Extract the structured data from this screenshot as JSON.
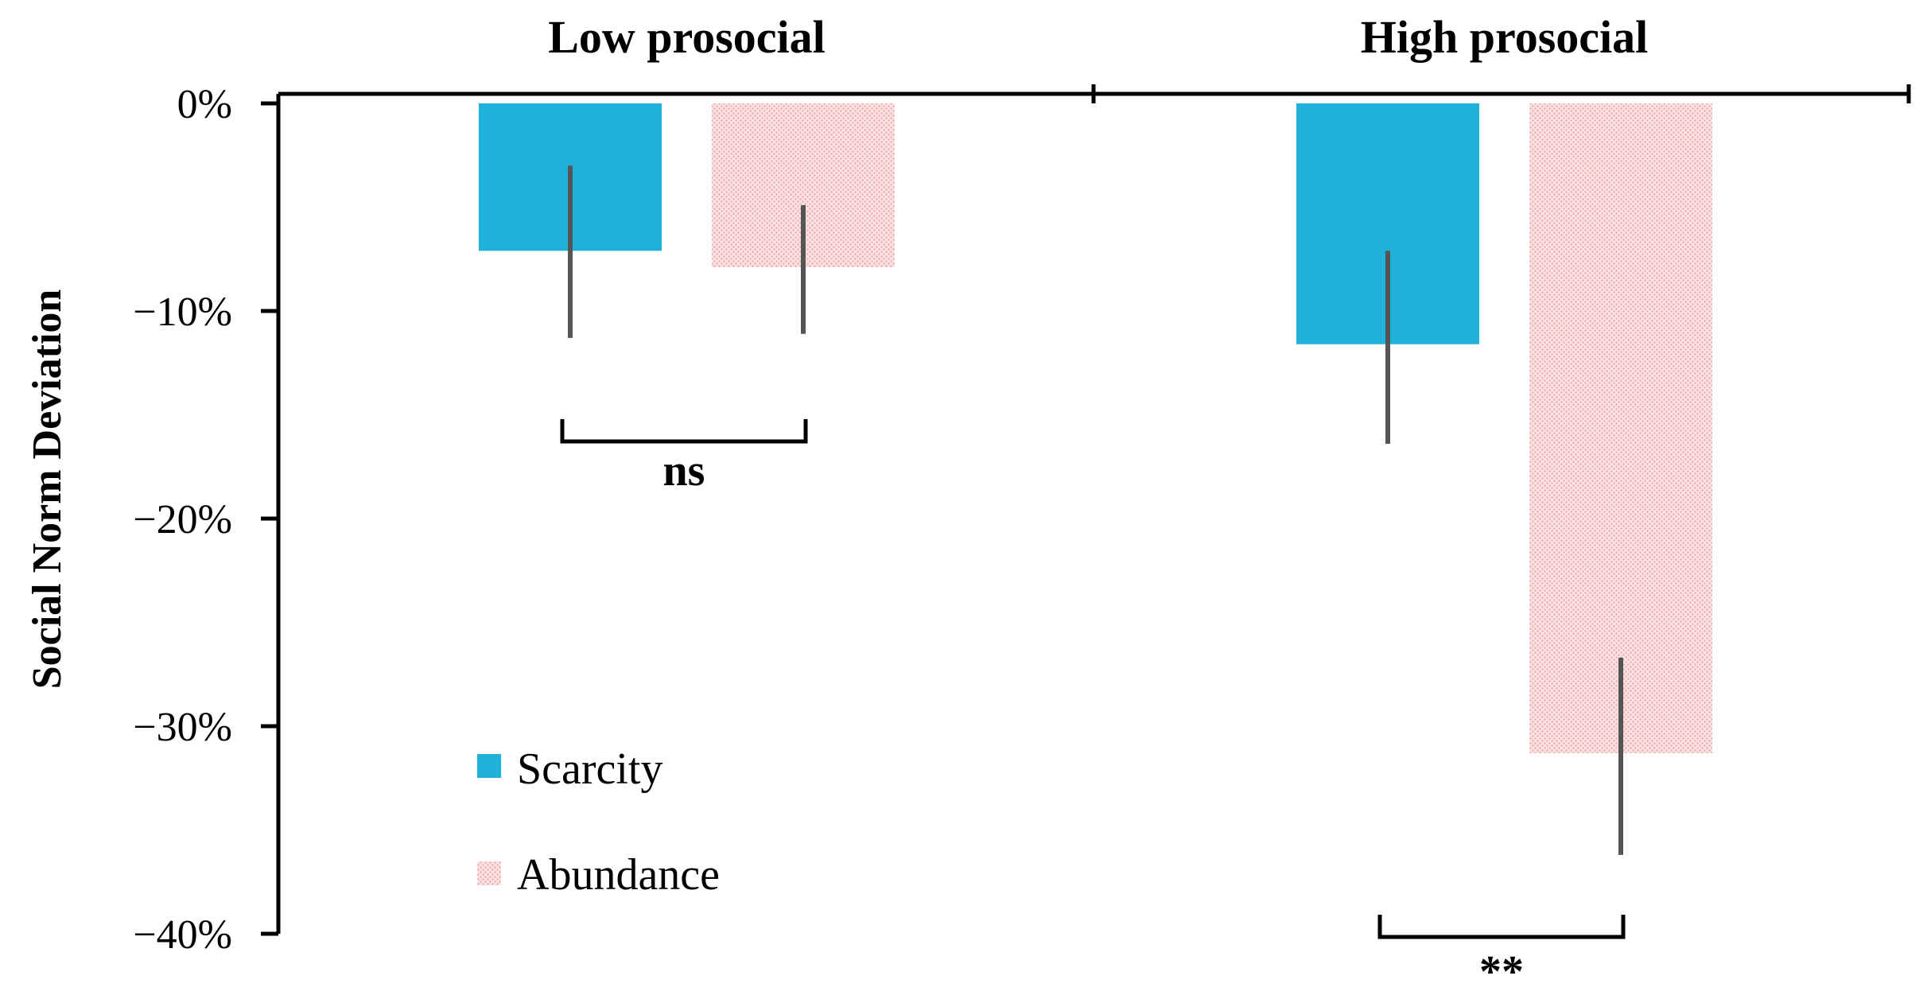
{
  "chart_data": {
    "type": "bar",
    "categories": [
      "Low prosocial",
      "High prosocial"
    ],
    "ylabel": "Social Norm Deviation",
    "xlabel": "",
    "ylim": [
      -40,
      0
    ],
    "y_ticks": [
      0,
      -10,
      -20,
      -30,
      -40
    ],
    "y_tick_labels": [
      "0%",
      "−10%",
      "−20%",
      "−30%",
      "−40%"
    ],
    "grid": false,
    "legend_position": "bottom-left",
    "series": [
      {
        "name": "Scarcity",
        "color": "#1fb1d8",
        "pattern": "solid",
        "values": [
          -7.1,
          -11.6
        ],
        "error_low": [
          -11.3,
          -16.4
        ],
        "error_high": [
          -3.0,
          -7.1
        ]
      },
      {
        "name": "Abundance",
        "color": "#f4b6b6",
        "pattern": "dotted",
        "values": [
          -7.9,
          -31.3
        ],
        "error_low": [
          -11.1,
          -36.2
        ],
        "error_high": [
          -4.9,
          -26.7
        ]
      }
    ],
    "annotations": [
      {
        "category": "Low prosocial",
        "label": "ns"
      },
      {
        "category": "High prosocial",
        "label": "**"
      }
    ]
  }
}
